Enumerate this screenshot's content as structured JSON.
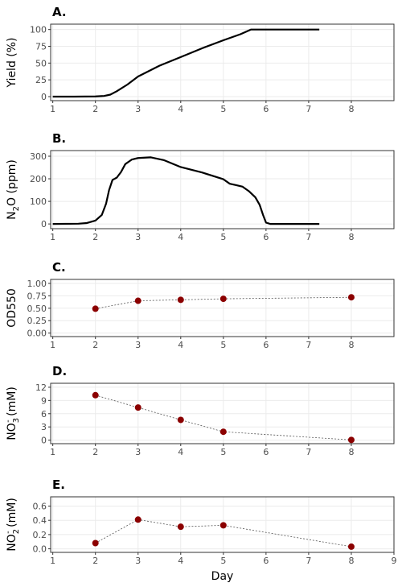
{
  "chart_data": [
    {
      "type": "line",
      "title": "A.",
      "y_label": [
        {
          "text": "Yield (%)"
        }
      ],
      "x": [
        1,
        1.5,
        2.0,
        2.2,
        2.35,
        2.5,
        2.75,
        3.0,
        3.5,
        4.0,
        4.5,
        5.0,
        5.4,
        5.65,
        6.0,
        7.25
      ],
      "values": [
        0,
        0,
        0.3,
        1,
        3,
        8,
        18,
        30,
        46,
        59,
        72,
        84,
        93,
        100,
        100,
        100
      ],
      "color": "#000000",
      "line_width": 2.2,
      "markers": false,
      "xlim": [
        0.95,
        9
      ],
      "xticks": [
        1,
        2,
        3,
        4,
        5,
        6,
        7,
        8
      ],
      "ylim": [
        -6,
        108
      ],
      "yticks": [
        0,
        25,
        50,
        75,
        100
      ],
      "grid": true
    },
    {
      "type": "line",
      "title": "B.",
      "y_label": [
        {
          "text": "N"
        },
        {
          "text": "2",
          "shift": "sub"
        },
        {
          "text": "O (ppm)"
        }
      ],
      "x": [
        1,
        1.6,
        1.8,
        2.0,
        2.15,
        2.25,
        2.32,
        2.4,
        2.5,
        2.6,
        2.7,
        2.85,
        3.0,
        3.3,
        3.6,
        4.0,
        4.5,
        5.0,
        5.15,
        5.3,
        5.45,
        5.6,
        5.75,
        5.85,
        5.93,
        6.0,
        6.1,
        7.25
      ],
      "values": [
        0,
        1,
        4,
        15,
        40,
        90,
        150,
        195,
        205,
        230,
        265,
        285,
        292,
        295,
        283,
        252,
        228,
        198,
        178,
        172,
        165,
        145,
        118,
        85,
        40,
        6,
        0,
        0
      ],
      "color": "#000000",
      "line_width": 2.2,
      "markers": false,
      "xlim": [
        0.95,
        9
      ],
      "xticks": [
        1,
        2,
        3,
        4,
        5,
        6,
        7,
        8
      ],
      "ylim": [
        -21,
        325
      ],
      "yticks": [
        0,
        100,
        200,
        300
      ],
      "grid": true
    },
    {
      "type": "line",
      "title": "C.",
      "y_label": [
        {
          "text": "OD550"
        }
      ],
      "x": [
        2,
        3,
        4,
        5,
        8
      ],
      "values": [
        0.49,
        0.65,
        0.67,
        0.69,
        0.72
      ],
      "color": "#8b0000",
      "line_color": "#555555",
      "line_width": 0.8,
      "markers": true,
      "dotted": true,
      "xlim": [
        0.95,
        9
      ],
      "xticks": [
        1,
        2,
        3,
        4,
        5,
        6,
        7,
        8
      ],
      "ylim": [
        -0.07,
        1.08
      ],
      "yticks": [
        {
          "value": 0,
          "label": "0.00"
        },
        0.25,
        {
          "value": 0.5,
          "label": "0.50"
        },
        0.75,
        {
          "value": 1,
          "label": "1.00"
        }
      ],
      "grid": true
    },
    {
      "type": "line",
      "title": "D.",
      "y_label": [
        {
          "text": "NO"
        },
        {
          "text": "3",
          "shift": "sub"
        },
        {
          "text": "-",
          "shift": "sup"
        },
        {
          "text": " (mM)"
        }
      ],
      "x": [
        2,
        3,
        4,
        5,
        8
      ],
      "values": [
        10.2,
        7.4,
        4.6,
        1.9,
        0.05
      ],
      "color": "#8b0000",
      "line_color": "#555555",
      "line_width": 0.8,
      "markers": true,
      "dotted": true,
      "xlim": [
        0.95,
        9
      ],
      "xticks": [
        1,
        2,
        3,
        4,
        5,
        6,
        7,
        8
      ],
      "ylim": [
        -0.8,
        12.9
      ],
      "yticks": [
        0,
        3,
        6,
        9,
        12
      ],
      "grid": true
    },
    {
      "type": "line",
      "title": "E.",
      "y_label": [
        {
          "text": "NO"
        },
        {
          "text": "2",
          "shift": "sub"
        },
        {
          "text": "-",
          "shift": "sup"
        },
        {
          "text": " (mM)"
        }
      ],
      "x_label": "Day",
      "x": [
        2,
        3,
        4,
        5,
        8
      ],
      "values": [
        0.08,
        0.41,
        0.31,
        0.33,
        0.03
      ],
      "color": "#8b0000",
      "line_color": "#555555",
      "line_width": 0.8,
      "markers": true,
      "dotted": true,
      "xlim": [
        0.95,
        9
      ],
      "xticks": [
        1,
        2,
        3,
        4,
        5,
        6,
        7,
        8,
        9
      ],
      "ylim": [
        -0.05,
        0.73
      ],
      "yticks": [
        {
          "value": 0,
          "label": "0.0"
        },
        0.2,
        0.4,
        0.6
      ],
      "grid": true
    }
  ]
}
